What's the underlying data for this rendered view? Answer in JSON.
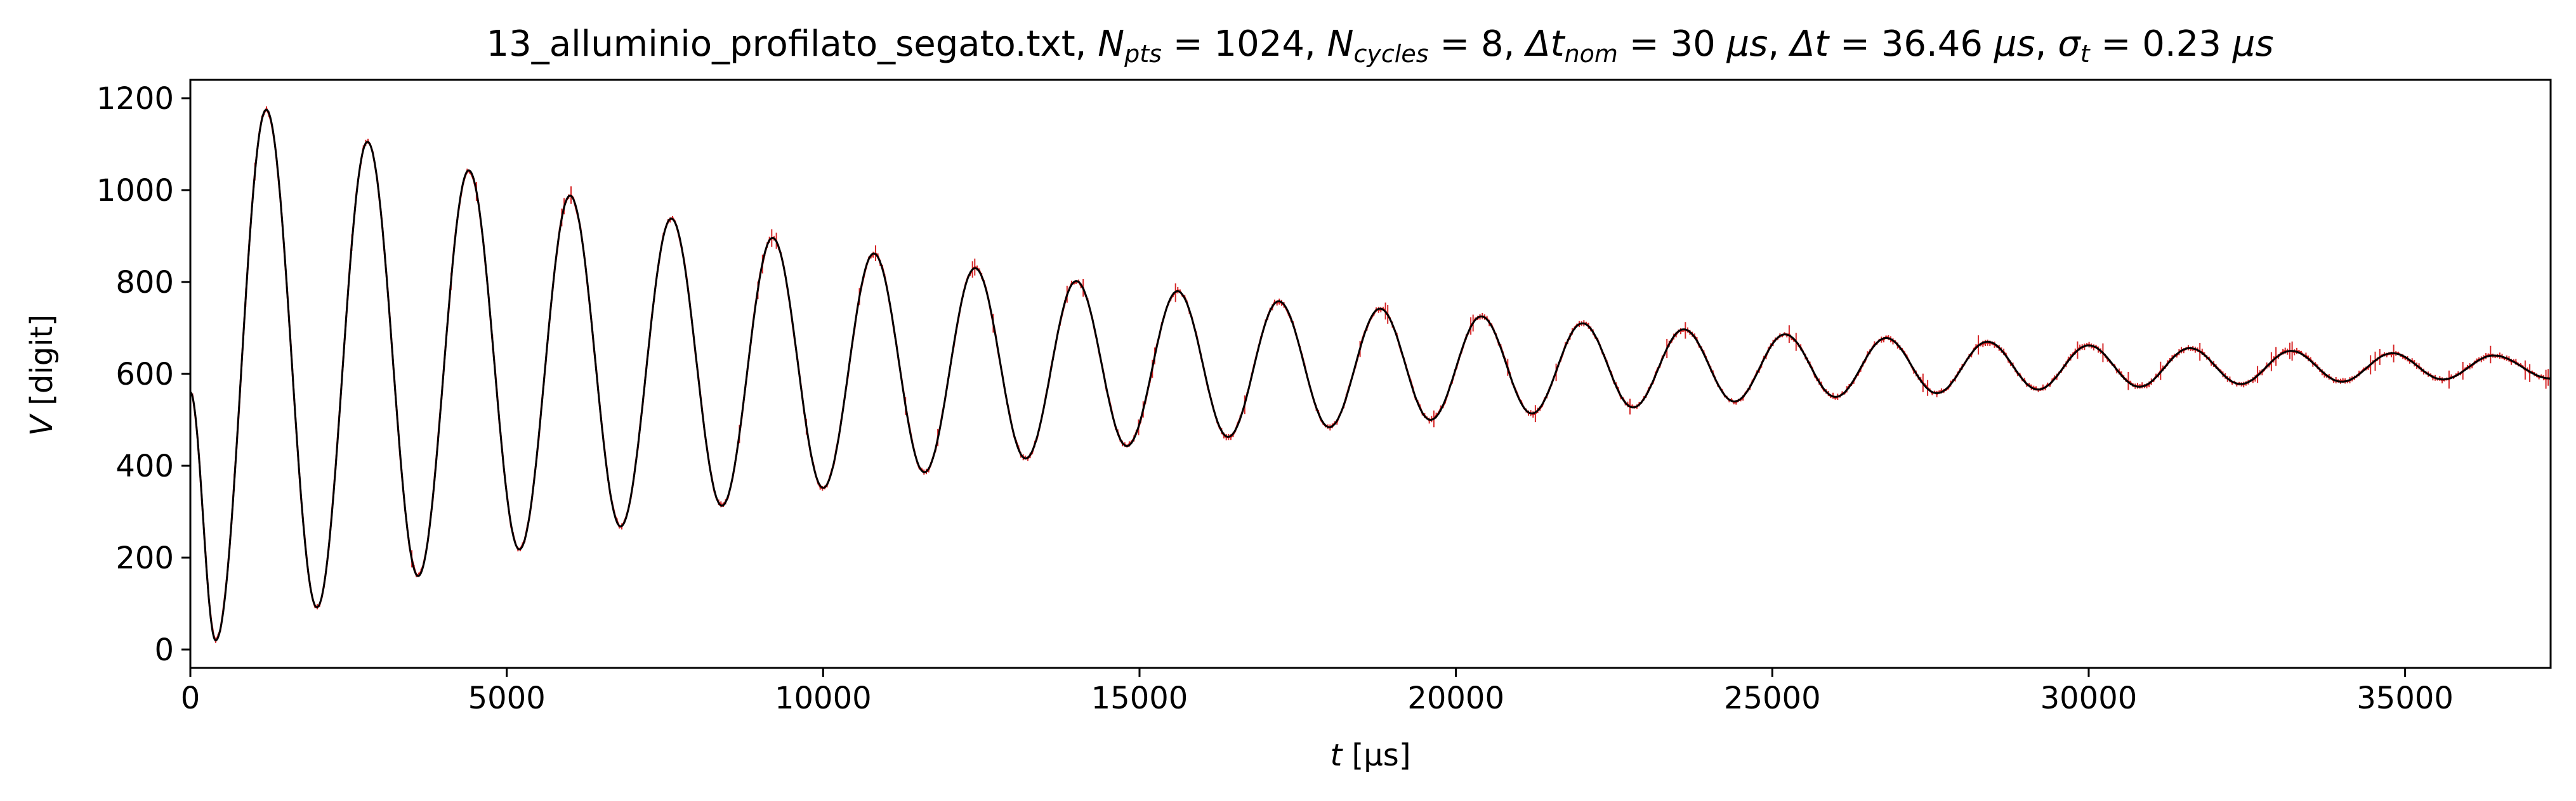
{
  "chart_data": {
    "type": "line",
    "title": {
      "filename": "13_alluminio_profilato_segato.txt, ",
      "npts_symbol": "N",
      "npts_sub": "pts",
      "npts_value": " = 1024, ",
      "ncycles_symbol": "N",
      "ncycles_sub": "cycles",
      "ncycles_value": " = 8, ",
      "dtnom_symbol": "Δt",
      "dtnom_sub": "nom",
      "dtnom_value": " = 30 ",
      "dtnom_unit": "μs",
      "dt_symbol": "Δt",
      "dt_value": " = 36.46 ",
      "dt_unit": "μs",
      "sigma_symbol": "σ",
      "sigma_sub": "t",
      "sigma_value": " = 0.23 ",
      "sigma_unit": "μs",
      "sep": ", "
    },
    "xlabel": {
      "symbol": "t",
      "unit": " [μs]"
    },
    "ylabel": {
      "symbol": "V",
      "unit": " [digit]"
    },
    "xlim": [
      0,
      37300
    ],
    "ylim": [
      -40,
      1240
    ],
    "xticks": [
      0,
      5000,
      10000,
      15000,
      20000,
      25000,
      30000,
      35000
    ],
    "xtick_labels": [
      "0",
      "5000",
      "10000",
      "15000",
      "20000",
      "25000",
      "30000",
      "35000"
    ],
    "yticks": [
      0,
      200,
      400,
      600,
      800,
      1000,
      1200
    ],
    "ytick_labels": [
      "0",
      "200",
      "400",
      "600",
      "800",
      "1000",
      "1200"
    ],
    "grid": false,
    "series": [
      {
        "style": "data with error bars",
        "color": "#d62728",
        "n_points": 1024,
        "dt": 36.46,
        "sigma_t": 0.23
      },
      {
        "style": "fit curve",
        "color": "#000000",
        "model": {
          "offset": 598,
          "amplitude": 610,
          "decay_time": 10500,
          "period": 1600,
          "t_first_min": 400
        }
      }
    ],
    "features": {
      "maxima": [
        {
          "t": 1200,
          "v": 1175
        },
        {
          "t": 2800,
          "v": 1105
        },
        {
          "t": 4400,
          "v": 1043
        },
        {
          "t": 6000,
          "v": 988
        },
        {
          "t": 7600,
          "v": 938
        },
        {
          "t": 9200,
          "v": 896
        },
        {
          "t": 10800,
          "v": 862
        },
        {
          "t": 12400,
          "v": 830
        },
        {
          "t": 14000,
          "v": 802
        },
        {
          "t": 15600,
          "v": 780
        },
        {
          "t": 17200,
          "v": 758
        },
        {
          "t": 18800,
          "v": 742
        },
        {
          "t": 20400,
          "v": 725
        },
        {
          "t": 22000,
          "v": 710
        },
        {
          "t": 23600,
          "v": 697
        },
        {
          "t": 25200,
          "v": 686
        },
        {
          "t": 26800,
          "v": 678
        },
        {
          "t": 28400,
          "v": 670
        },
        {
          "t": 30000,
          "v": 662
        },
        {
          "t": 31600,
          "v": 656
        },
        {
          "t": 33200,
          "v": 650
        },
        {
          "t": 34800,
          "v": 645
        },
        {
          "t": 36400,
          "v": 640
        }
      ],
      "minima": [
        {
          "t": 400,
          "v": 20
        },
        {
          "t": 2000,
          "v": 92
        },
        {
          "t": 3600,
          "v": 160
        },
        {
          "t": 5200,
          "v": 218
        },
        {
          "t": 6800,
          "v": 268
        },
        {
          "t": 8400,
          "v": 313
        },
        {
          "t": 10000,
          "v": 352
        },
        {
          "t": 11600,
          "v": 386
        },
        {
          "t": 13200,
          "v": 416
        },
        {
          "t": 14800,
          "v": 443
        },
        {
          "t": 16400,
          "v": 463
        },
        {
          "t": 18000,
          "v": 484
        },
        {
          "t": 19600,
          "v": 500
        },
        {
          "t": 21200,
          "v": 514
        },
        {
          "t": 22800,
          "v": 527
        },
        {
          "t": 24400,
          "v": 540
        },
        {
          "t": 26000,
          "v": 550
        },
        {
          "t": 27600,
          "v": 558
        },
        {
          "t": 29200,
          "v": 566
        },
        {
          "t": 30800,
          "v": 572
        },
        {
          "t": 32400,
          "v": 578
        },
        {
          "t": 34000,
          "v": 583
        },
        {
          "t": 35600,
          "v": 588
        }
      ],
      "start": {
        "t": 0,
        "v": 560
      },
      "end": {
        "t": 37300,
        "v": 590
      }
    }
  }
}
